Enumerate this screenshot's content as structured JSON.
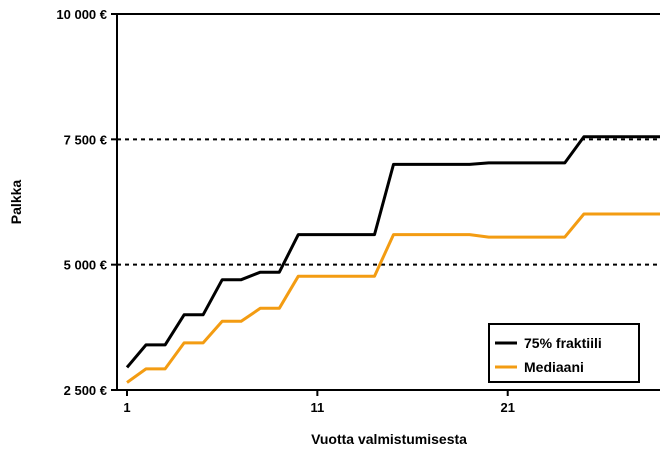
{
  "chart_data": {
    "type": "line",
    "xlabel": "Vuotta valmistumisesta",
    "ylabel": "Palkka",
    "xlim": [
      1,
      29
    ],
    "ylim": [
      2500,
      10000
    ],
    "x_ticks": [
      1,
      11,
      21
    ],
    "x_tick_labels": [
      "1",
      "11",
      "21"
    ],
    "y_ticks": [
      2500,
      5000,
      7500,
      10000
    ],
    "y_tick_labels": [
      "2 500 €",
      "5 000 €",
      "7 500 €",
      "10 000 €"
    ],
    "gridlines_dashed_at": [
      5000,
      7500,
      10000
    ],
    "legend_position": "bottom-right",
    "x": [
      1,
      2,
      3,
      4,
      5,
      6,
      7,
      8,
      9,
      10,
      11,
      12,
      13,
      14,
      15,
      16,
      17,
      18,
      19,
      20,
      21,
      22,
      23,
      24,
      25,
      26,
      27,
      28,
      29
    ],
    "series": [
      {
        "name": "75% fraktiili",
        "color": "#000000",
        "values": [
          2950,
          3400,
          3400,
          4000,
          4000,
          4700,
          4700,
          4850,
          4850,
          5600,
          5600,
          5600,
          5600,
          5600,
          7000,
          7000,
          7000,
          7000,
          7000,
          7030,
          7030,
          7030,
          7030,
          7030,
          7550,
          7550,
          7550,
          7550,
          7550
        ]
      },
      {
        "name": "Mediaani",
        "color": "#F39C12",
        "values": [
          2650,
          2920,
          2920,
          3440,
          3440,
          3870,
          3870,
          4130,
          4130,
          4770,
          4770,
          4770,
          4770,
          4770,
          5600,
          5600,
          5600,
          5600,
          5600,
          5550,
          5550,
          5550,
          5550,
          5550,
          6010,
          6010,
          6010,
          6010,
          6010
        ]
      }
    ]
  }
}
